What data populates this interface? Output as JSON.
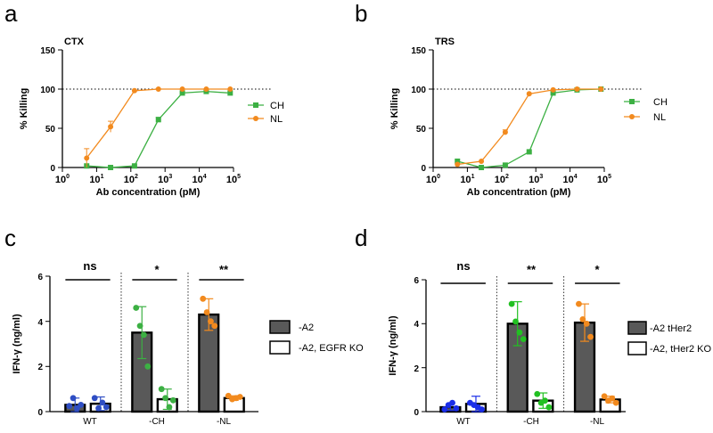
{
  "chart_data": [
    {
      "panel": "a",
      "type": "line",
      "title": "CTX",
      "xlabel": "Ab concentration (pM)",
      "ylabel": "% Killing",
      "xscale": "log",
      "xlim": [
        1,
        100000
      ],
      "x_ticks": [
        {
          "base": "10",
          "exp": "0"
        },
        {
          "base": "10",
          "exp": "1"
        },
        {
          "base": "10",
          "exp": "2"
        },
        {
          "base": "10",
          "exp": "3"
        },
        {
          "base": "10",
          "exp": "4"
        },
        {
          "base": "10",
          "exp": "5"
        }
      ],
      "ylim": [
        0,
        150
      ],
      "y_ticks": [
        "0",
        "50",
        "100",
        "150"
      ],
      "reference_line": 100,
      "legend": "right",
      "series": [
        {
          "name": "CH",
          "color": "#3cb043",
          "marker": "square",
          "x": [
            5.12,
            25.6,
            128,
            640,
            3200,
            16000,
            80000
          ],
          "y": [
            2,
            0,
            2,
            61,
            95,
            97,
            95
          ],
          "err": [
            0,
            0,
            0,
            3,
            0,
            0,
            0
          ]
        },
        {
          "name": "NL",
          "color": "#f28a1e",
          "marker": "circle",
          "x": [
            5.12,
            25.6,
            128,
            640,
            3200,
            16000,
            80000
          ],
          "y": [
            12,
            52,
            98,
            100,
            100,
            100,
            100
          ],
          "err": [
            12,
            7,
            0,
            0,
            0,
            0,
            0
          ]
        }
      ]
    },
    {
      "panel": "b",
      "type": "line",
      "title": "TRS",
      "xlabel": "Ab concentration (pM)",
      "ylabel": "% Killing",
      "xscale": "log",
      "xlim": [
        1,
        100000
      ],
      "x_ticks": [
        {
          "base": "10",
          "exp": "0"
        },
        {
          "base": "10",
          "exp": "1"
        },
        {
          "base": "10",
          "exp": "2"
        },
        {
          "base": "10",
          "exp": "3"
        },
        {
          "base": "10",
          "exp": "4"
        },
        {
          "base": "10",
          "exp": "5"
        }
      ],
      "ylim": [
        0,
        150
      ],
      "y_ticks": [
        "0",
        "50",
        "100",
        "150"
      ],
      "reference_line": 100,
      "legend": "right",
      "series": [
        {
          "name": "CH",
          "color": "#3cb043",
          "marker": "square",
          "x": [
            5.12,
            25.6,
            128,
            640,
            3200,
            16000,
            80000
          ],
          "y": [
            8,
            0,
            3,
            20,
            95,
            99,
            100
          ],
          "err": [
            0,
            0,
            0,
            0,
            0,
            0,
            0
          ]
        },
        {
          "name": "NL",
          "color": "#f28a1e",
          "marker": "circle",
          "x": [
            5.12,
            25.6,
            128,
            640,
            3200,
            16000,
            80000
          ],
          "y": [
            4,
            8,
            45,
            94,
            99,
            100,
            100
          ],
          "err": [
            0,
            0,
            3,
            0,
            0,
            0,
            0
          ]
        }
      ]
    },
    {
      "panel": "c",
      "type": "bar",
      "ylabel": "IFN-γ (ng/ml)",
      "ylim": [
        0,
        6
      ],
      "y_ticks": [
        "0",
        "2",
        "4",
        "6"
      ],
      "categories": [
        "WT",
        "-CH",
        "-NL"
      ],
      "legend": "right",
      "significance": [
        "ns",
        "*",
        "**"
      ],
      "dot_colors": [
        "#2f4ec4",
        "#3cb043",
        "#f28a1e"
      ],
      "series": [
        {
          "name": "-A2",
          "fill": "#595959",
          "values": [
            0.3,
            3.5,
            4.3
          ],
          "err": [
            0.3,
            1.15,
            0.7
          ],
          "points": [
            [
              0.25,
              0.6,
              0.15,
              0.3
            ],
            [
              4.6,
              3.8,
              3.4,
              2.0
            ],
            [
              5.0,
              4.4,
              4.0,
              3.8
            ]
          ]
        },
        {
          "name": "-A2, EGFR KO",
          "fill": "#ffffff",
          "values": [
            0.35,
            0.55,
            0.6
          ],
          "err": [
            0.3,
            0.45,
            0.1
          ],
          "points": [
            [
              0.6,
              0.15,
              0.4,
              0.2
            ],
            [
              1.0,
              0.6,
              0.2,
              0.5
            ],
            [
              0.7,
              0.55,
              0.6,
              0.65
            ]
          ]
        }
      ]
    },
    {
      "panel": "d",
      "type": "bar",
      "ylabel": "IFN-γ (ng/ml)",
      "ylim": [
        0,
        6
      ],
      "y_ticks": [
        "0",
        "2",
        "4",
        "6"
      ],
      "categories": [
        "WT",
        "-CH",
        "-NL"
      ],
      "legend": "right",
      "significance": [
        "ns",
        "**",
        "*"
      ],
      "dot_colors": [
        "#1b2ee8",
        "#22c022",
        "#f28a1e"
      ],
      "series": [
        {
          "name": "-A2 tHer2",
          "fill": "#595959",
          "values": [
            0.2,
            4.0,
            4.05
          ],
          "err": [
            0.15,
            1.0,
            0.85
          ],
          "points": [
            [
              0.1,
              0.3,
              0.4,
              0.15
            ],
            [
              4.9,
              4.1,
              3.6,
              3.3
            ],
            [
              4.9,
              4.2,
              4.0,
              3.4
            ]
          ]
        },
        {
          "name": "-A2, tHer2 KO",
          "fill": "#ffffff",
          "values": [
            0.35,
            0.5,
            0.55
          ],
          "err": [
            0.35,
            0.35,
            0.15
          ],
          "points": [
            [
              0.4,
              0.3,
              0.2,
              0.1
            ],
            [
              0.8,
              0.4,
              0.5,
              0.2
            ],
            [
              0.7,
              0.5,
              0.6,
              0.4
            ]
          ]
        }
      ]
    }
  ]
}
